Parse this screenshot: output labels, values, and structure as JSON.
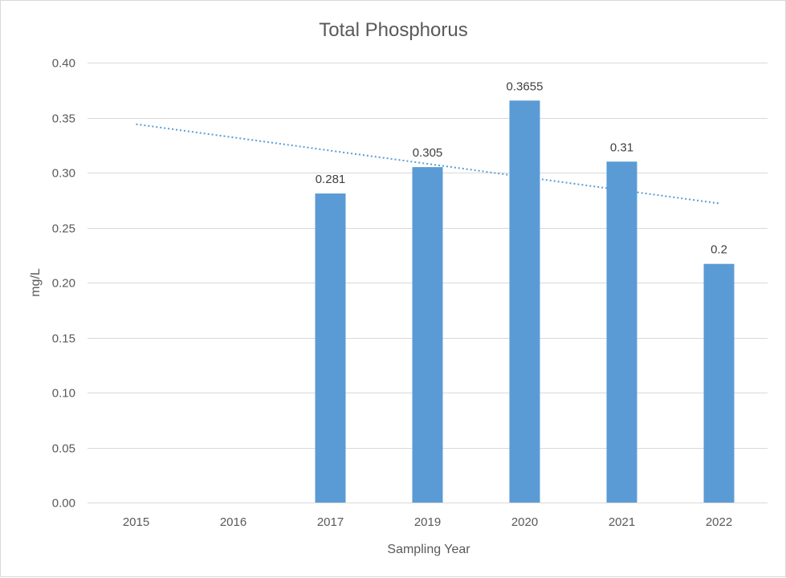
{
  "chart_data": {
    "type": "bar",
    "title": "Total Phosphorus",
    "xlabel": "Sampling Year",
    "ylabel": "mg/L",
    "categories": [
      "2015",
      "2016",
      "2017",
      "2019",
      "2020",
      "2021",
      "2022"
    ],
    "series": [
      {
        "values": [
          null,
          null,
          0.281,
          0.305,
          0.3655,
          0.31,
          0.217
        ],
        "data_labels": [
          "",
          "",
          "0.281",
          "0.305",
          "0.3655",
          "0.31",
          "0.2"
        ],
        "color": "#5b9bd5"
      }
    ],
    "trendline": {
      "type": "linear",
      "style": "dotted",
      "color": "#5b9bd5",
      "start": 0.344,
      "end": 0.272
    },
    "ylim": [
      0,
      0.4
    ],
    "yticks": [
      "0.00",
      "0.05",
      "0.10",
      "0.15",
      "0.20",
      "0.25",
      "0.30",
      "0.35",
      "0.40"
    ],
    "ytick_values": [
      0,
      0.05,
      0.1,
      0.15,
      0.2,
      0.25,
      0.3,
      0.35,
      0.4
    ],
    "grid": true,
    "legend": "none"
  }
}
